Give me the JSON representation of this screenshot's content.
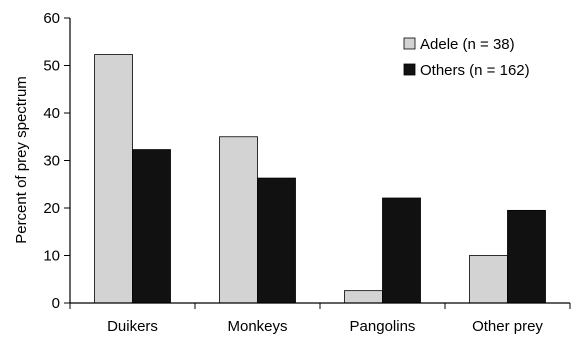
{
  "chart_data": {
    "type": "bar",
    "title": "",
    "xlabel": "",
    "ylabel": "Percent of prey spectrum",
    "categories": [
      "Duikers",
      "Monkeys",
      "Pangolins",
      "Other prey"
    ],
    "series": [
      {
        "name": "Adele (n = 38)",
        "values": [
          52.3,
          35.0,
          2.6,
          10.0
        ],
        "color": "#d3d3d3"
      },
      {
        "name": "Others (n = 162)",
        "values": [
          32.3,
          26.3,
          22.1,
          19.5
        ],
        "color": "#111111"
      }
    ],
    "ylim": [
      0,
      60
    ],
    "yticks": [
      0,
      10,
      20,
      30,
      40,
      50,
      60
    ],
    "grid": false,
    "legend_position": "top-right"
  }
}
